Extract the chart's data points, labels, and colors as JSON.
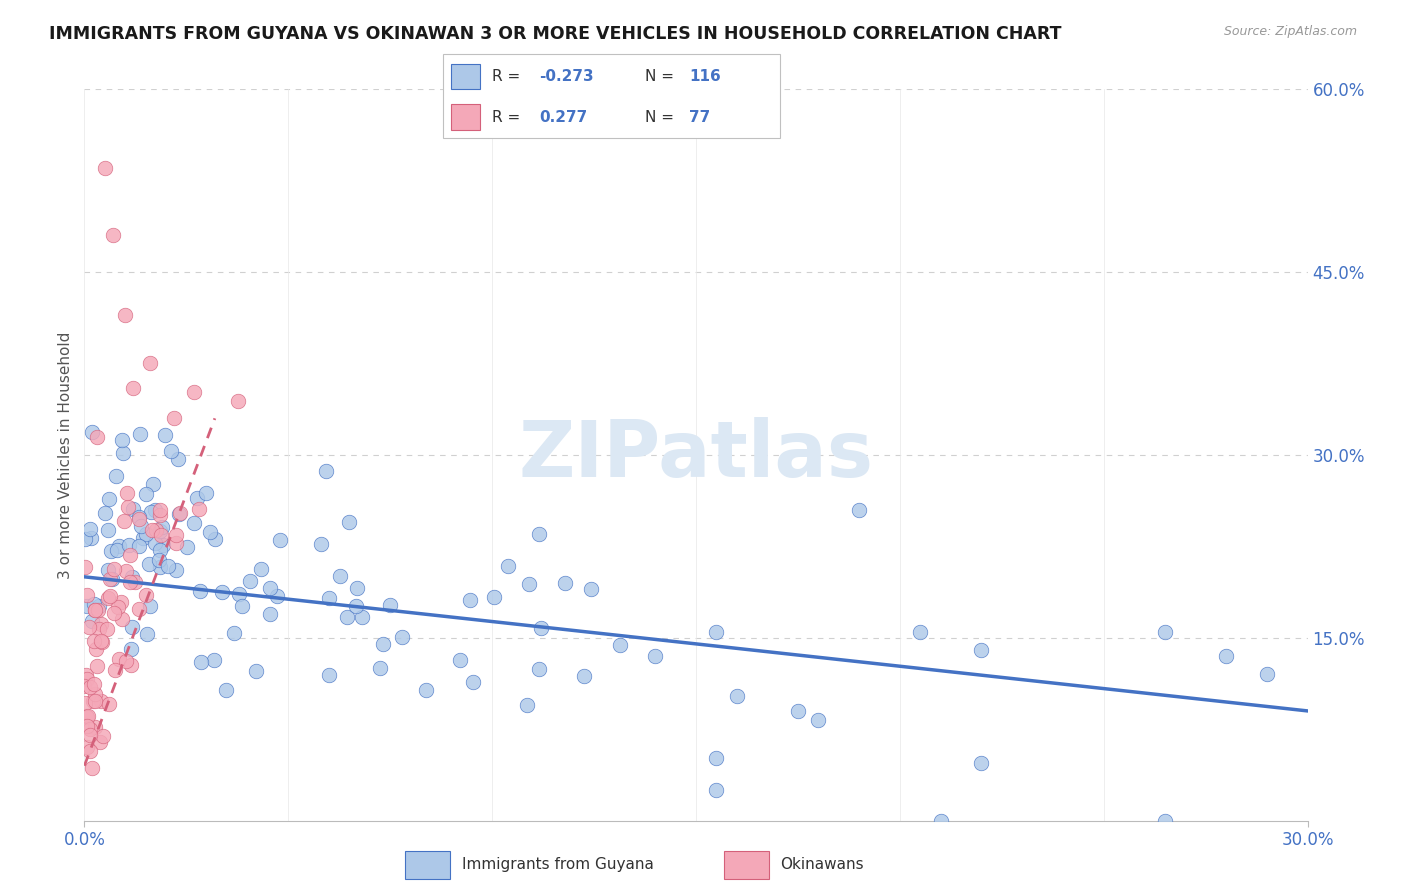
{
  "title": "IMMIGRANTS FROM GUYANA VS OKINAWAN 3 OR MORE VEHICLES IN HOUSEHOLD CORRELATION CHART",
  "source": "Source: ZipAtlas.com",
  "legend_blue_label": "Immigrants from Guyana",
  "legend_pink_label": "Okinawans",
  "R_blue": -0.273,
  "N_blue": 116,
  "R_pink": 0.277,
  "N_pink": 77,
  "x_min": 0.0,
  "x_max": 0.3,
  "y_min": 0.0,
  "y_max": 0.6,
  "blue_color": "#adc8e8",
  "pink_color": "#f4a8b8",
  "blue_line_color": "#4472c4",
  "pink_line_color": "#d4607a",
  "title_color": "#1a1a1a",
  "axis_label_color": "#4472c4",
  "watermark_color": "#dce8f4",
  "background_color": "#ffffff",
  "grid_color": "#d0d0d0"
}
